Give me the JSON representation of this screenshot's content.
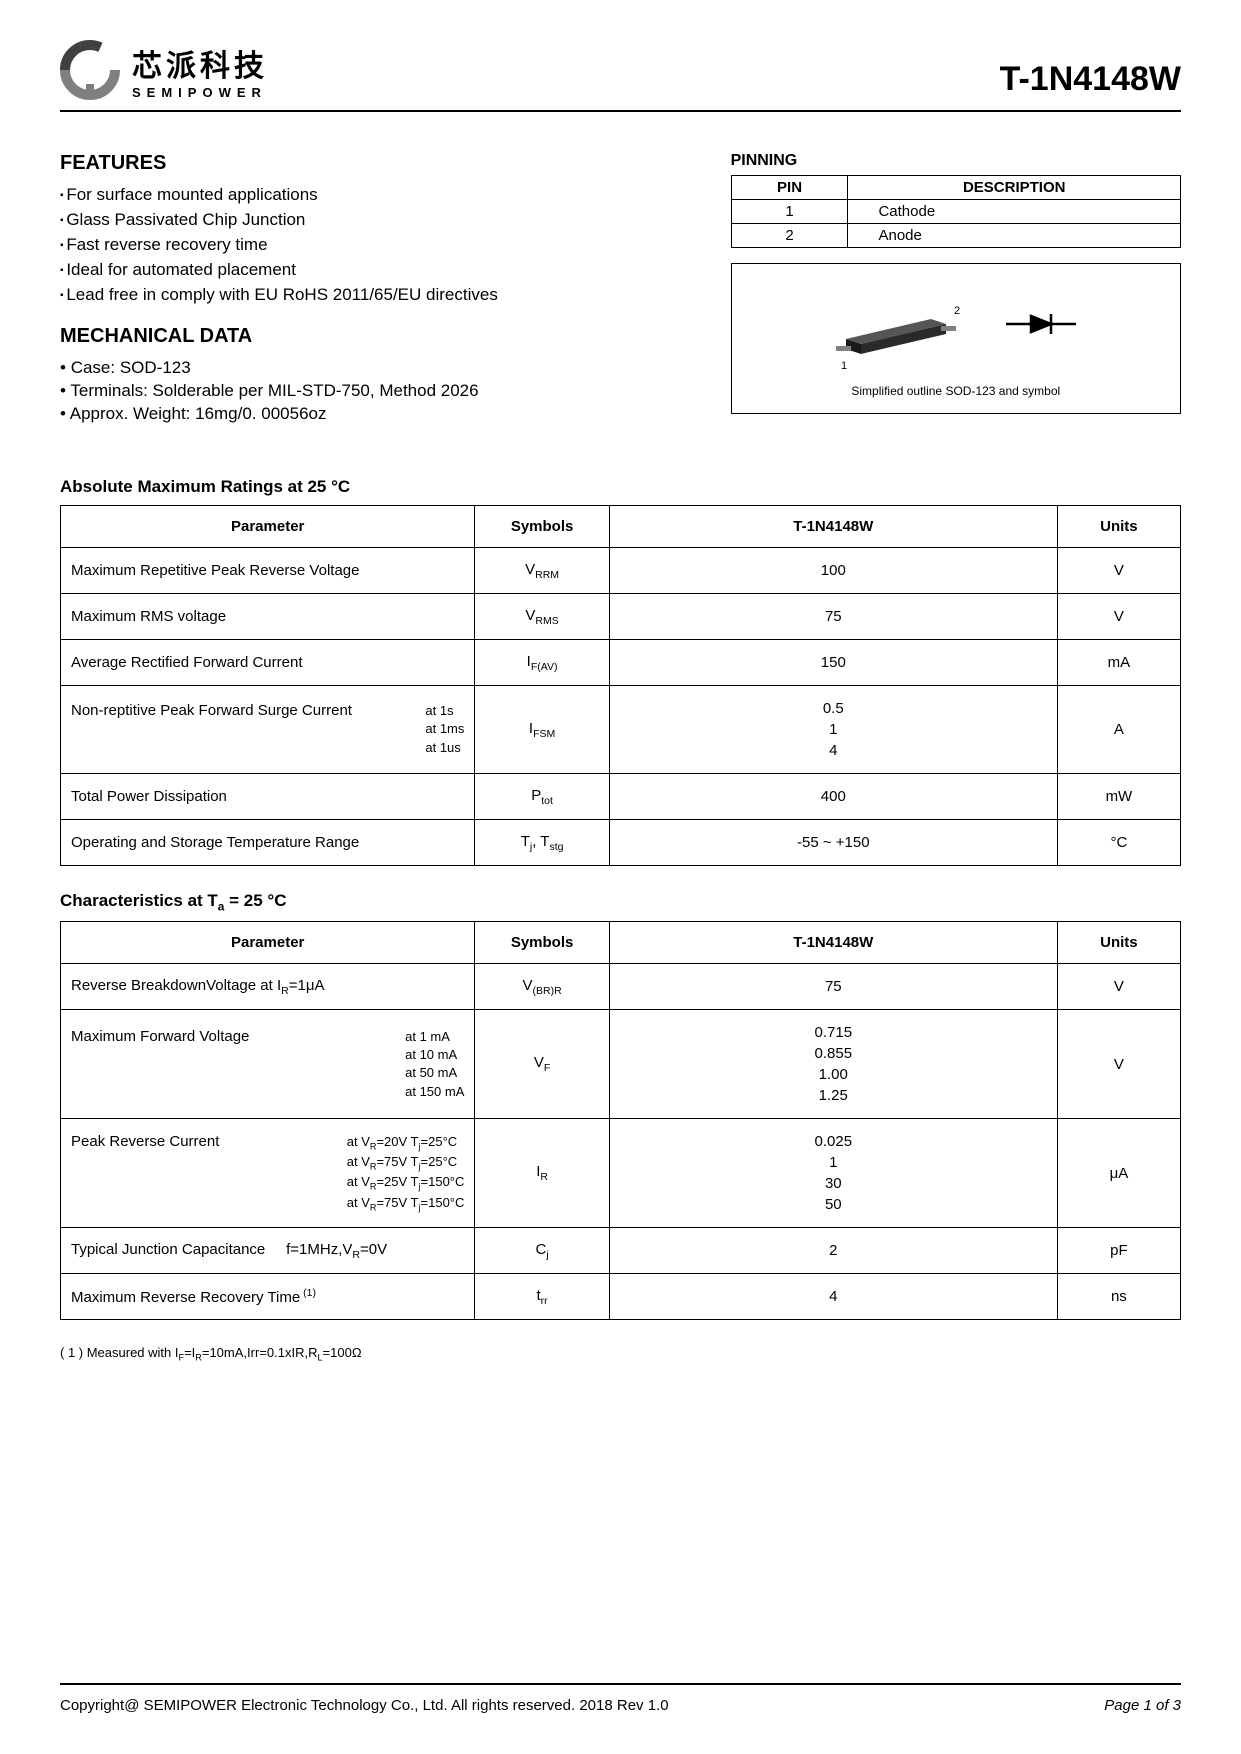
{
  "header": {
    "logo_cn": "芯派科技",
    "logo_en": "SEMIPOWER",
    "part_number": "T-1N4148W"
  },
  "features": {
    "title": "FEATURES",
    "items": [
      "For surface mounted applications",
      "Glass Passivated Chip Junction",
      "Fast reverse recovery time",
      "Ideal for automated placement",
      "Lead free in comply with EU RoHS 2011/65/EU directives"
    ]
  },
  "mechanical": {
    "title": "MECHANICAL DATA",
    "items": [
      "Case: SOD-123",
      "Terminals: Solderable per MIL-STD-750, Method 2026",
      "Approx. Weight: 16mg/0. 00056oz"
    ]
  },
  "pinning": {
    "title": "PINNING",
    "columns": [
      "PIN",
      "DESCRIPTION"
    ],
    "rows": [
      [
        "1",
        "Cathode"
      ],
      [
        "2",
        "Anode"
      ]
    ],
    "caption": "Simplified outline SOD-123 and symbol",
    "pin1": "1",
    "pin2": "2"
  },
  "absolute_max": {
    "title": "Absolute Maximum Ratings at 25 °C",
    "columns": [
      "Parameter",
      "Symbols",
      "T-1N4148W",
      "Units"
    ],
    "rows": [
      {
        "param": "Maximum Repetitive Peak Reverse Voltage",
        "conditions": "",
        "symbol": "V<sub>RRM</sub>",
        "value": "100",
        "units": "V"
      },
      {
        "param": "Maximum RMS voltage",
        "conditions": "",
        "symbol": "V<sub>RMS</sub>",
        "value": "75",
        "units": "V"
      },
      {
        "param": "Average Rectified Forward  Current",
        "conditions": "",
        "symbol": "I<sub>F(AV)</sub>",
        "value": "150",
        "units": "mA"
      },
      {
        "param": "Non-reptitive Peak Forward Surge Current",
        "conditions": "at 1s<br>at 1ms<br>at 1us",
        "symbol": "I<sub>FSM</sub>",
        "value": "0.5<br>1<br>4",
        "units": "A"
      },
      {
        "param": "Total Power Dissipation",
        "conditions": "",
        "symbol": "P<sub>tot</sub>",
        "value": "400",
        "units": "mW"
      },
      {
        "param": "Operating and Storage Temperature Range",
        "conditions": "",
        "symbol": "T<sub>j</sub>, T<sub>stg</sub>",
        "value": "-55 ~ +150",
        "units": "°C"
      }
    ]
  },
  "characteristics": {
    "title": "Characteristics at  T<sub>a</sub> = 25 °C",
    "columns": [
      "Parameter",
      "Symbols",
      "T-1N4148W",
      "Units"
    ],
    "rows": [
      {
        "param": "Reverse BreakdownVoltage at I<sub>R</sub>=1μA",
        "conditions": "",
        "symbol": "V<sub>(BR)R</sub>",
        "value": "75",
        "units": "V"
      },
      {
        "param": "Maximum Forward Voltage",
        "conditions": "at 1 mA<br>at 10 mA<br>at 50 mA<br>at 150 mA",
        "symbol": "V<sub>F</sub>",
        "value": "0.715<br>0.855<br>1.00<br>1.25",
        "units": "V"
      },
      {
        "param": "Peak Reverse Current",
        "conditions": "at V<sub>R</sub>=20V   T<sub>j</sub>=25°C<br>at V<sub>R</sub>=75V   T<sub>j</sub>=25°C<br>at V<sub>R</sub>=25V   T<sub>j</sub>=150°C<br>at V<sub>R</sub>=75V   T<sub>j</sub>=150°C",
        "symbol": "I<sub>R</sub>",
        "value": "0.025<br>1<br>30<br>50",
        "units": "μA"
      },
      {
        "param": "Typical Junction Capacitance &nbsp;&nbsp;&nbsp; f=1MHz,V<sub>R</sub>=0V",
        "conditions": "",
        "symbol": "C<sub>j</sub>",
        "value": "2",
        "units": "pF"
      },
      {
        "param": "Maximum Reverse Recovery Time<sup> (1)</sup>",
        "conditions": "",
        "symbol": "t<sub>rr</sub>",
        "value": "4",
        "units": "ns"
      }
    ]
  },
  "footnote": "( 1 ) Measured with I<sub>F</sub>=I<sub>R</sub>=10mA,Irr=0.1xIR,R<sub>L</sub>=100Ω",
  "footer": {
    "copyright": "Copyright@ SEMIPOWER Electronic Technology Co., Ltd.  All rights reserved.  2018  Rev  1.0",
    "page": "Page 1 of 3"
  },
  "colors": {
    "text": "#000000",
    "background": "#ffffff",
    "border": "#000000",
    "logo_gray": "#808080",
    "logo_dark": "#404040",
    "component_body": "#2a2a2a",
    "component_light": "#555555"
  }
}
